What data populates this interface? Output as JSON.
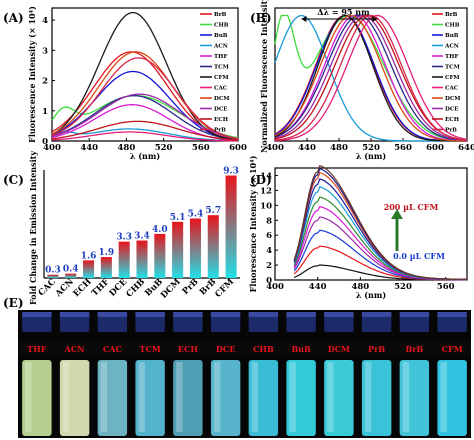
{
  "chart_data": [
    {
      "panel": "(A)",
      "type": "line",
      "xlabel": "λ (nm)",
      "ylabel": "Fluorescence Intensity (× 10⁴)",
      "xlim": [
        400,
        600
      ],
      "ylim": [
        0,
        4.4
      ],
      "xticks": [
        "400",
        "440",
        "480",
        "520",
        "560",
        "600"
      ],
      "yticks": [
        "0",
        "1",
        "2",
        "3",
        "4"
      ],
      "legend_position": "right",
      "series": [
        {
          "name": "BrB",
          "color": "#e8141c",
          "peak": 485,
          "height": 2.95,
          "sigma": 40,
          "bump": 0
        },
        {
          "name": "CHB",
          "color": "#3ddc3d",
          "peak": 490,
          "height": 1.5,
          "sigma": 48,
          "bump": 0.7
        },
        {
          "name": "BuB",
          "color": "#1515d8",
          "peak": 487,
          "height": 2.3,
          "sigma": 40,
          "bump": 0
        },
        {
          "name": "ACN",
          "color": "#1a9ad8",
          "peak": 483,
          "height": 0.4,
          "sigma": 42,
          "bump": 0.2
        },
        {
          "name": "THF",
          "color": "#d81ad8",
          "peak": 486,
          "height": 1.2,
          "sigma": 40,
          "bump": 0
        },
        {
          "name": "TCM",
          "color": "#2a2a8a",
          "peak": 488,
          "height": 1.5,
          "sigma": 42,
          "bump": 0
        },
        {
          "name": "CFM",
          "color": "#1a1a1a",
          "peak": 487,
          "height": 4.25,
          "sigma": 36,
          "bump": 0
        },
        {
          "name": "CAC",
          "color": "#e61e7a",
          "peak": 483,
          "height": 0.3,
          "sigma": 40,
          "bump": 0
        },
        {
          "name": "DCM",
          "color": "#d84a14",
          "peak": 490,
          "height": 2.95,
          "sigma": 40,
          "bump": 0
        },
        {
          "name": "DCE",
          "color": "#9a2aa8",
          "peak": 494,
          "height": 1.55,
          "sigma": 44,
          "bump": 0
        },
        {
          "name": "ECH",
          "color": "#c0141c",
          "peak": 492,
          "height": 0.65,
          "sigma": 44,
          "bump": 0
        },
        {
          "name": "PrB",
          "color": "#d6264a",
          "peak": 493,
          "height": 2.75,
          "sigma": 40,
          "bump": 0
        }
      ]
    },
    {
      "panel": "(B)",
      "type": "line",
      "xlabel": "λ (nm)",
      "ylabel": "Normalized Fluorescence Intensity",
      "xlim": [
        400,
        640
      ],
      "ylim": [
        0,
        1.06
      ],
      "xticks": [
        "400",
        "440",
        "480",
        "520",
        "560",
        "600",
        "640"
      ],
      "annotation": "Δλ = 95 nm",
      "legend_position": "right",
      "series": [
        {
          "name": "BrB",
          "color": "#e8141c",
          "peak": 487,
          "sigma": 36,
          "bump": 0
        },
        {
          "name": "CHB",
          "color": "#3ddc3d",
          "peak": 492,
          "sigma": 44,
          "bump": 0.85
        },
        {
          "name": "BuB",
          "color": "#1515d8",
          "peak": 488,
          "sigma": 36,
          "bump": 0
        },
        {
          "name": "ACN",
          "color": "#1a9ad8",
          "peak": 433,
          "sigma": 34,
          "bump": 0
        },
        {
          "name": "THF",
          "color": "#d81ad8",
          "peak": 500,
          "sigma": 38,
          "bump": 0
        },
        {
          "name": "TCM",
          "color": "#2a2a8a",
          "peak": 505,
          "sigma": 40,
          "bump": 0
        },
        {
          "name": "CFM",
          "color": "#1a1a1a",
          "peak": 488,
          "sigma": 34,
          "bump": 0
        },
        {
          "name": "CAC",
          "color": "#e61e7a",
          "peak": 528,
          "sigma": 38,
          "bump": 0
        },
        {
          "name": "DCM",
          "color": "#d84a14",
          "peak": 495,
          "sigma": 38,
          "bump": 0
        },
        {
          "name": "DCE",
          "color": "#9a2aa8",
          "peak": 510,
          "sigma": 40,
          "bump": 0
        },
        {
          "name": "ECH",
          "color": "#c0141c",
          "peak": 515,
          "sigma": 40,
          "bump": 0
        },
        {
          "name": "PrB",
          "color": "#d6264a",
          "peak": 520,
          "sigma": 38,
          "bump": 0
        }
      ]
    },
    {
      "panel": "(C)",
      "type": "bar",
      "ylabel": "Fold Change in Emission Intensity",
      "ylim": [
        0,
        9.8
      ],
      "categories": [
        "CAC",
        "ACN",
        "ECH",
        "THF",
        "DCE",
        "CHB",
        "BuB",
        "DCM",
        "PrB",
        "BrB",
        "CFM"
      ],
      "values": [
        0.3,
        0.4,
        1.6,
        1.9,
        3.3,
        3.4,
        4.0,
        5.1,
        5.4,
        5.7,
        9.3
      ],
      "labels": [
        "0.3",
        "0.4",
        "1.6",
        "1.9",
        "3.3",
        "3.4",
        "4.0",
        "5.1",
        "5.4",
        "5.7",
        "9.3"
      ],
      "bar_gradient": [
        "#e8141c",
        "#22e0e8"
      ]
    },
    {
      "panel": "(D)",
      "type": "line",
      "xlabel": "λ (nm)",
      "ylabel": "Fluorescence Intensity (× 10⁴)",
      "xlim": [
        400,
        580
      ],
      "ylim": [
        0,
        15
      ],
      "xticks": [
        "400",
        "440",
        "480",
        "520",
        "560"
      ],
      "yticks": [
        "0",
        "2",
        "4",
        "6",
        "8",
        "10",
        "12",
        "14"
      ],
      "annotation_top": "200 µL CFM",
      "annotation_bottom": "0.0 µL CFM",
      "peak": 440,
      "heights": [
        1.9,
        4.3,
        6.3,
        8.0,
        9.3,
        10.5,
        11.8,
        12.8,
        13.6,
        14.1,
        14.5
      ],
      "colors": [
        "#111111",
        "#e8141c",
        "#1a3ad8",
        "#9a2aa8",
        "#d81ad8",
        "#2f8a2f",
        "#1a9ad8",
        "#1a1aa0",
        "#e0461e",
        "#1a1a8a",
        "#6a3a2a"
      ]
    }
  ],
  "vials": {
    "panel": "(E)",
    "labels": [
      "THF",
      "ACN",
      "CAC",
      "TCM",
      "ECH",
      "DCE",
      "CHB",
      "BuB",
      "DCM",
      "PrB",
      "BrB",
      "CFM"
    ],
    "glow_colors": [
      "#c8e6a0",
      "#e8f0c0",
      "#78c8d8",
      "#5cc6e0",
      "#58b0c8",
      "#60c8e0",
      "#40d0ee",
      "#38e0f0",
      "#40e0f0",
      "#40d8f0",
      "#48d8f0",
      "#38d8f8"
    ]
  }
}
